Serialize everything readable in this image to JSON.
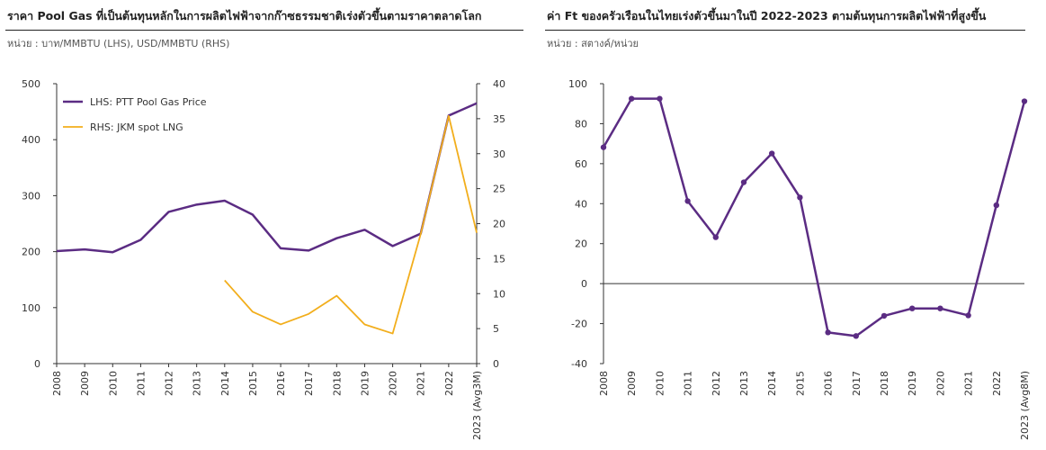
{
  "left": {
    "title": "ราคา Pool Gas ที่เป็นต้นทุนหลักในการผลิตไฟฟ้าจากก๊าซธรรมชาติเร่งตัวขึ้นตามราคาตลาดโลก",
    "subtitle": "หน่วย : บาท/MMBTU (LHS), USD/MMBTU (RHS)"
  },
  "right": {
    "title": "ค่า Ft ของครัวเรือนในไทยเร่งตัวขึ้นมาในปี 2022-2023 ตามต้นทุนการผลิตไฟฟ้าที่สูงขึ้น",
    "subtitle": "หน่วย : สตางค์/หน่วย"
  },
  "colors": {
    "purple": "#5b2c83",
    "orange": "#f2ae1c",
    "axis": "#333333"
  },
  "chart_data": [
    {
      "type": "line",
      "categories": [
        "2008",
        "2009",
        "2010",
        "2011",
        "2012",
        "2013",
        "2014",
        "2015",
        "2016",
        "2017",
        "2018",
        "2019",
        "2020",
        "2021",
        "2022",
        "2023 (Avg3M)"
      ],
      "y_left": {
        "ylim": [
          0,
          500
        ],
        "ticks": [
          "0",
          "100",
          "200",
          "300",
          "400",
          "500"
        ]
      },
      "y_right": {
        "ylim": [
          0,
          40
        ],
        "ticks": [
          "0",
          "5",
          "10",
          "15",
          "20",
          "25",
          "30",
          "35",
          "40"
        ]
      },
      "legend_position": "top-left",
      "series": [
        {
          "name": "LHS: PTT Pool Gas Price",
          "axis": "left",
          "color": "#5b2c83",
          "markers": false,
          "values": [
            201,
            204,
            199,
            221,
            271,
            284,
            291,
            266,
            206,
            202,
            224,
            239,
            210,
            232,
            443,
            465
          ]
        },
        {
          "name": "RHS: JKM spot LNG",
          "axis": "right",
          "color": "#f2ae1c",
          "markers": false,
          "values": [
            null,
            null,
            null,
            null,
            null,
            null,
            11.9,
            7.4,
            5.6,
            7.1,
            9.7,
            5.6,
            4.3,
            18.5,
            35.4,
            18.7
          ]
        }
      ]
    },
    {
      "type": "line",
      "categories": [
        "2008",
        "2009",
        "2010",
        "2011",
        "2012",
        "2013",
        "2014",
        "2015",
        "2016",
        "2017",
        "2018",
        "2019",
        "2020",
        "2021",
        "2022",
        "2023 (Avg8M)"
      ],
      "ylim": [
        -40,
        100
      ],
      "ticks": [
        "-40",
        "-20",
        "0",
        "20",
        "40",
        "60",
        "80",
        "100"
      ],
      "series": [
        {
          "color": "#5b2c83",
          "markers": true,
          "values": [
            68.2,
            92.5,
            92.5,
            41.3,
            23.2,
            50.7,
            65.1,
            43.1,
            -24.4,
            -26.2,
            -16.1,
            -12.4,
            -12.4,
            -15.9,
            39.2,
            91.2
          ]
        }
      ]
    }
  ]
}
